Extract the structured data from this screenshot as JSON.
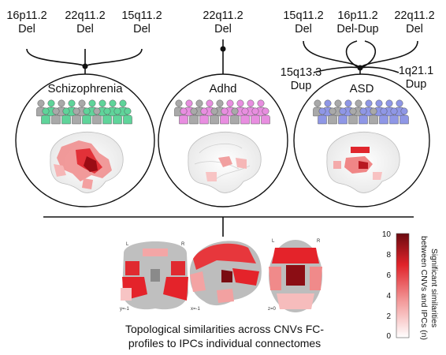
{
  "groups": [
    {
      "disorder": "Schizophrenia",
      "cnvs": [
        [
          "16p11.2",
          "Del"
        ],
        [
          "22q11.2",
          "Del"
        ],
        [
          "15q11.2",
          "Del"
        ]
      ],
      "figure_color": "#5fd49a"
    },
    {
      "disorder": "Adhd",
      "cnvs": [
        [
          "22q11.2",
          "Del"
        ]
      ],
      "figure_color": "#e88ee0"
    },
    {
      "disorder": "ASD",
      "cnvs": [
        [
          "15q11.2",
          "Del"
        ],
        [
          "16p11.2",
          "Del-Dup"
        ],
        [
          "22q11.2",
          "Del"
        ],
        [
          "15q13.3",
          "Dup"
        ],
        [
          "1q21.1",
          "Dup"
        ]
      ],
      "figure_color": "#8f97e6"
    }
  ],
  "caption": {
    "line1": "Topological similarities across CNVs FC-",
    "line2": "profiles to IPCs individual connectomes"
  },
  "colorbar": {
    "ticks": [
      "10",
      "8",
      "6",
      "4",
      "2",
      "0"
    ],
    "title_line1": "Significant similarities",
    "title_line2": "between CNVs and IPCs (n)"
  },
  "slice_labels": {
    "coronal_l": "L",
    "coronal_r": "R",
    "coronal_coord": "y=-1",
    "sagittal_coord": "x=-1",
    "axial_l": "L",
    "axial_r": "R",
    "axial_coord": "z=0"
  },
  "colors": {
    "dark_red": "#8b0d14",
    "red": "#e1262c",
    "pink": "#f3a3a3",
    "gray_figure": "#a9a9a9"
  }
}
